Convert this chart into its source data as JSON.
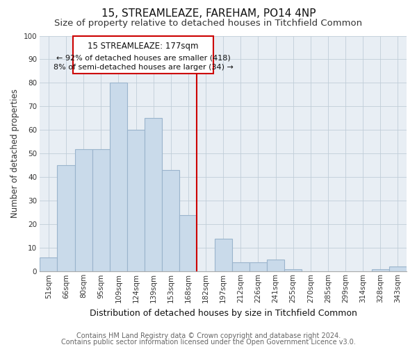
{
  "title": "15, STREAMLEAZE, FAREHAM, PO14 4NP",
  "subtitle": "Size of property relative to detached houses in Titchfield Common",
  "xlabel": "Distribution of detached houses by size in Titchfield Common",
  "ylabel": "Number of detached properties",
  "bar_labels": [
    "51sqm",
    "66sqm",
    "80sqm",
    "95sqm",
    "109sqm",
    "124sqm",
    "139sqm",
    "153sqm",
    "168sqm",
    "182sqm",
    "197sqm",
    "212sqm",
    "226sqm",
    "241sqm",
    "255sqm",
    "270sqm",
    "285sqm",
    "299sqm",
    "314sqm",
    "328sqm",
    "343sqm"
  ],
  "bar_values": [
    6,
    45,
    52,
    52,
    80,
    60,
    65,
    43,
    24,
    0,
    14,
    4,
    4,
    5,
    1,
    0,
    0,
    0,
    0,
    1,
    2
  ],
  "bar_color": "#c9daea",
  "bar_edge_color": "#9ab4cc",
  "vline_color": "#cc0000",
  "ylim": [
    0,
    100
  ],
  "yticks": [
    0,
    10,
    20,
    30,
    40,
    50,
    60,
    70,
    80,
    90,
    100
  ],
  "annotation_title": "15 STREAMLEAZE: 177sqm",
  "annotation_line1": "← 92% of detached houses are smaller (418)",
  "annotation_line2": "8% of semi-detached houses are larger (34) →",
  "annotation_box_color": "#ffffff",
  "annotation_box_edge": "#cc0000",
  "bg_color": "#e8eef4",
  "footer1": "Contains HM Land Registry data © Crown copyright and database right 2024.",
  "footer2": "Contains public sector information licensed under the Open Government Licence v3.0.",
  "title_fontsize": 11,
  "subtitle_fontsize": 9.5,
  "xlabel_fontsize": 9,
  "ylabel_fontsize": 8.5,
  "tick_fontsize": 7.5,
  "annot_title_fontsize": 8.5,
  "annot_text_fontsize": 8,
  "footer_fontsize": 7
}
